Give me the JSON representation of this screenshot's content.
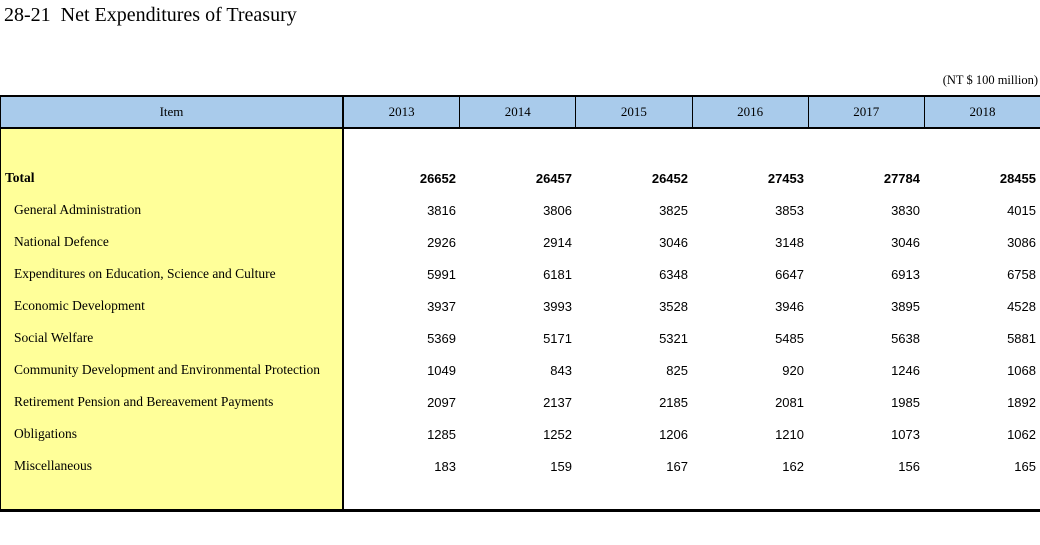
{
  "page": {
    "title": "28-21  Net Expenditures of Treasury",
    "unit_note": "(NT $ 100 million)"
  },
  "colors": {
    "header_bg": "#A9CBEB",
    "item_column_bg": "#FFFF99",
    "border": "#000000",
    "text": "#000000"
  },
  "table": {
    "item_header": "Item",
    "year_headers": [
      "2013",
      "2014",
      "2015",
      "2016",
      "2017",
      "2018"
    ],
    "rows": [
      {
        "label": "Total",
        "bold": true,
        "values": [
          26652,
          26457,
          26452,
          27453,
          27784,
          28455
        ]
      },
      {
        "label": "General Administration",
        "bold": false,
        "values": [
          3816,
          3806,
          3825,
          3853,
          3830,
          4015
        ]
      },
      {
        "label": "National Defence",
        "bold": false,
        "values": [
          2926,
          2914,
          3046,
          3148,
          3046,
          3086
        ]
      },
      {
        "label": "Expenditures on Education, Science and Culture",
        "bold": false,
        "values": [
          5991,
          6181,
          6348,
          6647,
          6913,
          6758
        ]
      },
      {
        "label": "Economic Development",
        "bold": false,
        "values": [
          3937,
          3993,
          3528,
          3946,
          3895,
          4528
        ]
      },
      {
        "label": "Social Welfare",
        "bold": false,
        "values": [
          5369,
          5171,
          5321,
          5485,
          5638,
          5881
        ]
      },
      {
        "label": "Community Development and Environmental Protection",
        "bold": false,
        "values": [
          1049,
          843,
          825,
          920,
          1246,
          1068
        ]
      },
      {
        "label": "Retirement Pension and Bereavement Payments",
        "bold": false,
        "values": [
          2097,
          2137,
          2185,
          2081,
          1985,
          1892
        ]
      },
      {
        "label": "Obligations",
        "bold": false,
        "values": [
          1285,
          1252,
          1206,
          1210,
          1073,
          1062
        ]
      },
      {
        "label": "Miscellaneous",
        "bold": false,
        "values": [
          183,
          159,
          167,
          162,
          156,
          165
        ]
      }
    ]
  }
}
